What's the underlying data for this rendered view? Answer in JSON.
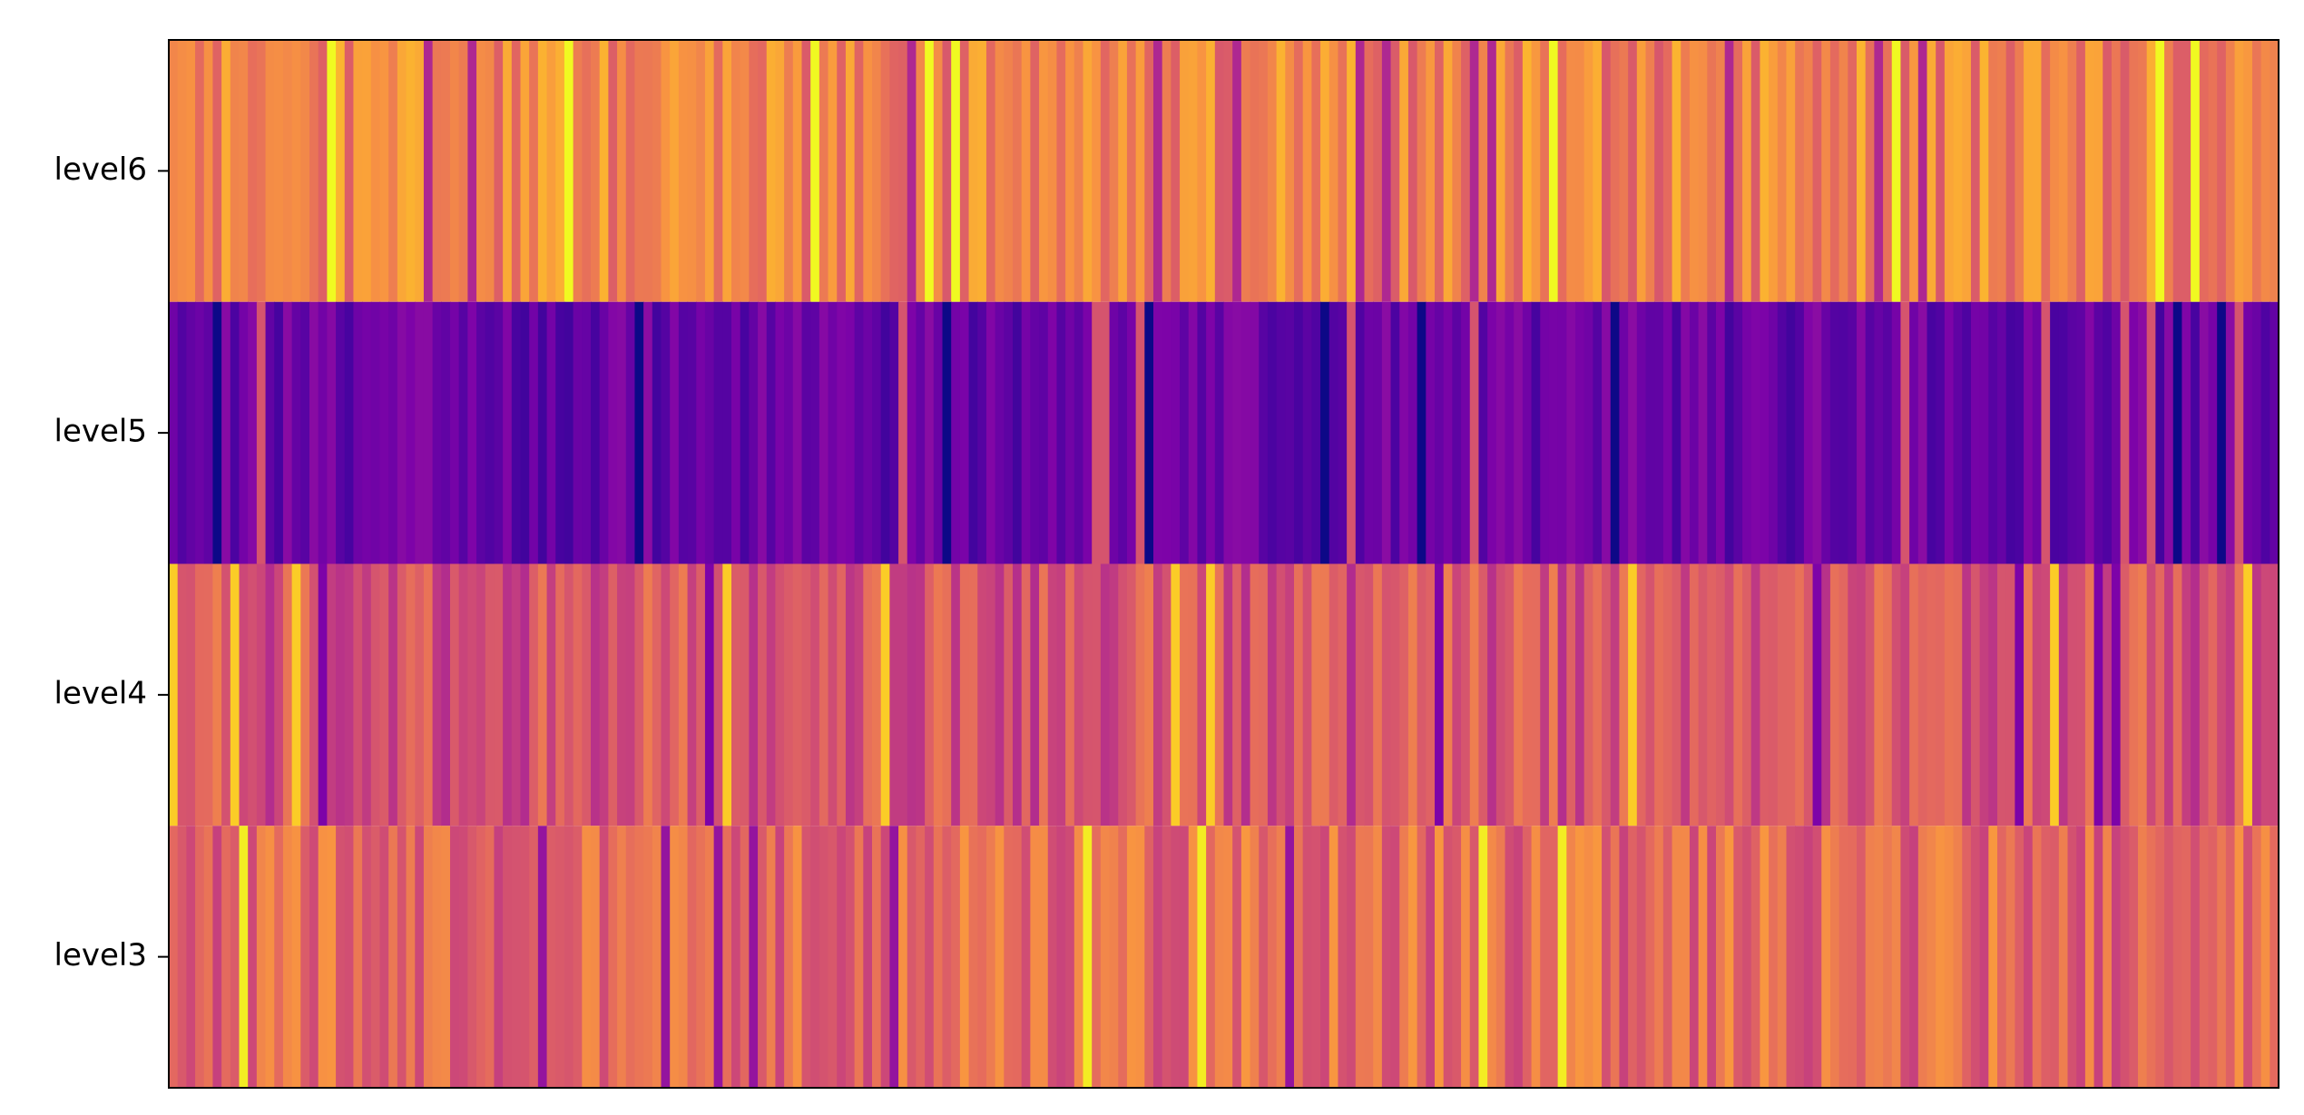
{
  "chart_data": {
    "type": "heatmap",
    "title": "",
    "xlabel": "",
    "ylabel": "",
    "colormap": "plasma",
    "value_range": [
      0,
      1
    ],
    "grid": false,
    "legend": "none",
    "x_ticks": "none",
    "rows": [
      "level6",
      "level5",
      "level4",
      "level3"
    ],
    "columns": 240,
    "row_base_values": {
      "level6": 0.7,
      "level5": 0.2,
      "level4": 0.55,
      "level3": 0.62
    },
    "row_spread": {
      "level6": 0.14,
      "level5": 0.09,
      "level4": 0.14,
      "level3": 0.14
    }
  }
}
